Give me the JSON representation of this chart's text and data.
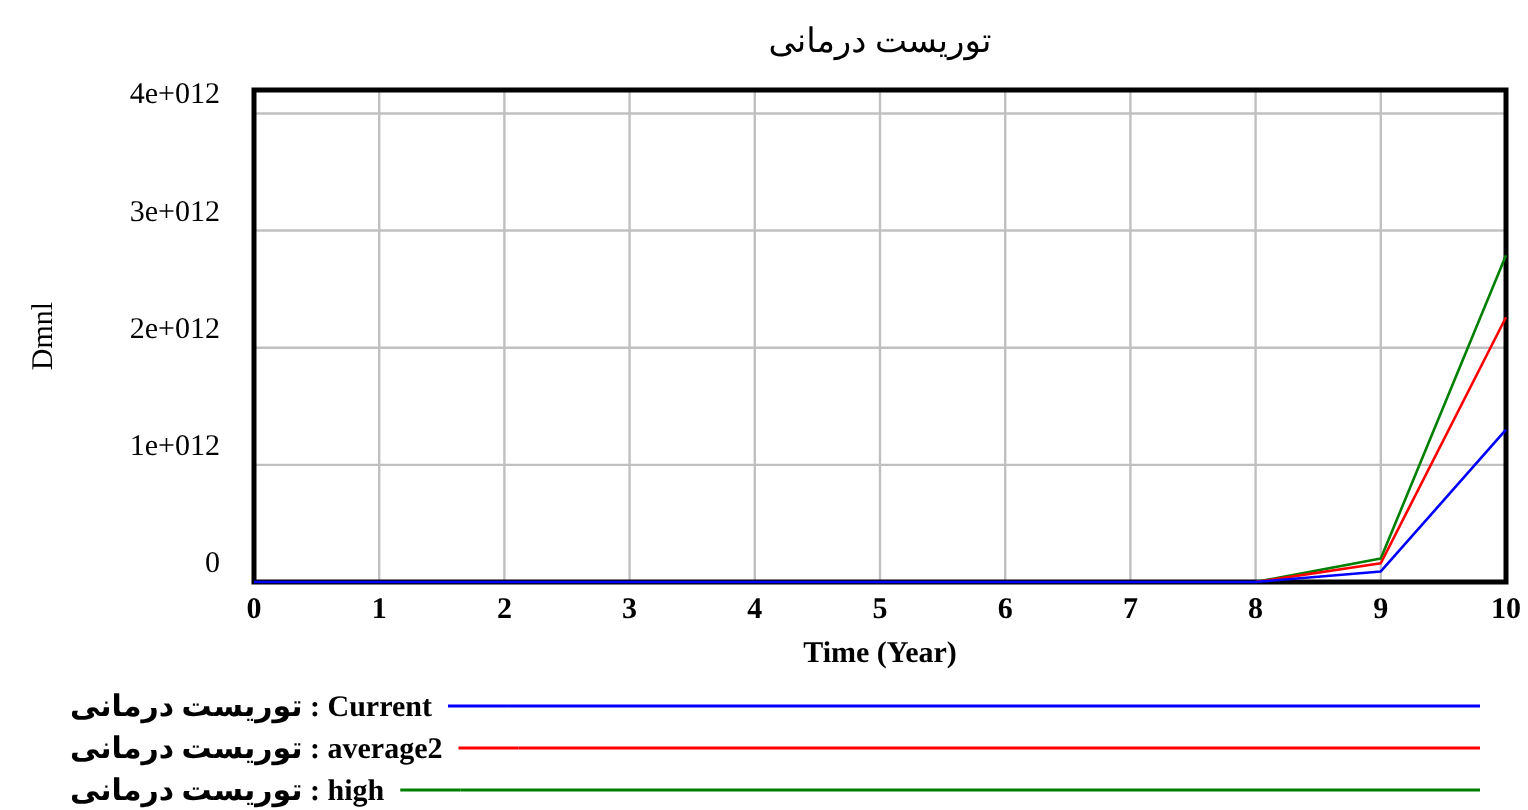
{
  "chart_data": {
    "type": "line",
    "title": "توریست درمانی",
    "xlabel": "Time (Year)",
    "ylabel": "Dmnl",
    "x": [
      0,
      1,
      2,
      3,
      4,
      5,
      6,
      7,
      8,
      9,
      10
    ],
    "xlim": [
      0,
      10
    ],
    "xticks": [
      0,
      1,
      2,
      3,
      4,
      5,
      6,
      7,
      8,
      9,
      10
    ],
    "ylim": [
      0,
      4200000000000
    ],
    "yticks": [
      0,
      {
        "value": 1000000000000,
        "label": "1e+012"
      },
      {
        "value": 2000000000000,
        "label": "2e+012"
      },
      {
        "value": 3000000000000,
        "label": "3e+012"
      },
      {
        "value": 4000000000000,
        "label": "4e+012"
      }
    ],
    "grid": true,
    "legend": "bottom",
    "marker": "none",
    "line_style": "solid",
    "series": [
      {
        "name": "توریست درمانی : Current",
        "color": "#0000ff",
        "values": [
          0,
          0,
          0,
          0,
          0,
          0,
          0,
          0,
          0,
          90000000000,
          1300000000000
        ]
      },
      {
        "name": "توریست درمانی : average2",
        "color": "#ff0000",
        "values": [
          null,
          null,
          null,
          null,
          null,
          null,
          null,
          null,
          0,
          160000000000,
          2260000000000
        ]
      },
      {
        "name": "توریست درمانی : high",
        "color": "#008000",
        "values": [
          null,
          null,
          null,
          null,
          null,
          null,
          null,
          null,
          0,
          200000000000,
          2790000000000
        ]
      }
    ]
  }
}
